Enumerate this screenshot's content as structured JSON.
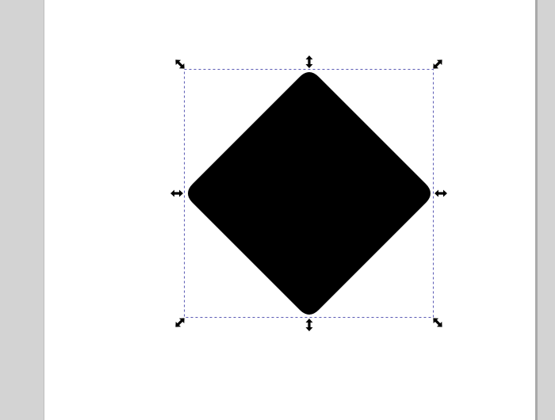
{
  "app": {
    "type": "vector-editor-canvas"
  },
  "selection": {
    "tool": "select",
    "mode": "scale",
    "handle_icons": {
      "corner": "diagonal-double-arrow-icon",
      "edge": "double-arrow-icon"
    },
    "bbox_color": "#5a5ab4"
  },
  "shape": {
    "kind": "rounded-diamond",
    "fill": "#000000",
    "selected": true
  },
  "colors": {
    "workspace": "#d3d3d3",
    "page": "#ffffff"
  }
}
